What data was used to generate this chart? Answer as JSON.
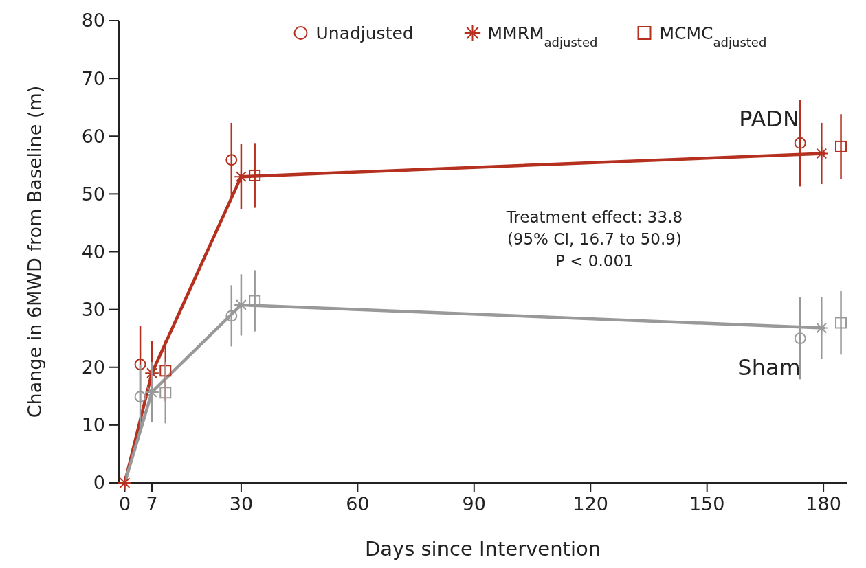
{
  "chart_data": {
    "type": "scatter",
    "xlabel": "Days since Intervention",
    "ylabel": "Change in 6MWD from Baseline (m)",
    "xlim": [
      -1.5,
      186
    ],
    "xticks": [
      0,
      7,
      30,
      60,
      90,
      120,
      150,
      180
    ],
    "ylim": [
      0,
      80
    ],
    "yticks": [
      0,
      10,
      20,
      30,
      40,
      50,
      60,
      70,
      80
    ],
    "grid": false,
    "legend": "top",
    "series": [
      {
        "type": "line",
        "color": "#b5301e",
        "x": [
          0,
          7,
          30,
          180
        ],
        "values": [
          0,
          19.0,
          53.0,
          57.0
        ],
        "marker": "none"
      },
      {
        "type": "line",
        "color": "#999999",
        "x": [
          0,
          7,
          30,
          180
        ],
        "values": [
          0,
          15.7,
          30.8,
          26.8
        ],
        "marker": "none"
      },
      {
        "name": "Unadjusted",
        "color": "#b5301e",
        "marker": "circle",
        "x": [
          4,
          27.5,
          174
        ],
        "values": [
          20.5,
          55.9,
          58.8
        ],
        "errors": [
          6.7,
          6.4,
          7.5
        ]
      },
      {
        "name": "MMRM$_{adjusted}$",
        "color": "#b5301e",
        "marker": "cross",
        "x": [
          0,
          7,
          30,
          179.5
        ],
        "values": [
          0,
          19.0,
          53.0,
          57.0
        ],
        "errors": [
          null,
          5.5,
          5.6,
          5.3
        ]
      },
      {
        "name": "MCMC$_{adjusted}$",
        "color": "#b5301e",
        "marker": "square",
        "x": [
          10.5,
          33.5,
          184.5
        ],
        "values": [
          19.4,
          53.2,
          58.2
        ],
        "errors": [
          5.3,
          5.6,
          5.6
        ]
      },
      {
        "color": "#999999",
        "marker": "circle",
        "x": [
          4,
          27.5,
          174
        ],
        "values": [
          14.9,
          28.9,
          25.0
        ],
        "errors": [
          5.5,
          5.3,
          7.1
        ]
      },
      {
        "color": "#999999",
        "marker": "cross",
        "x": [
          7,
          30,
          179.5
        ],
        "values": [
          15.7,
          30.8,
          26.8
        ],
        "errors": [
          5.2,
          5.3,
          5.3
        ]
      },
      {
        "color": "#999999",
        "marker": "square",
        "x": [
          10.5,
          33.5,
          184.5
        ],
        "values": [
          15.6,
          31.5,
          27.7
        ],
        "errors": [
          5.3,
          5.3,
          5.5
        ]
      }
    ],
    "annotations": [
      "PADN",
      "Sham",
      "Treatment effect: 33.8",
      "(95% CI, 16.7 to 50.9)",
      "P < 0.001"
    ]
  }
}
